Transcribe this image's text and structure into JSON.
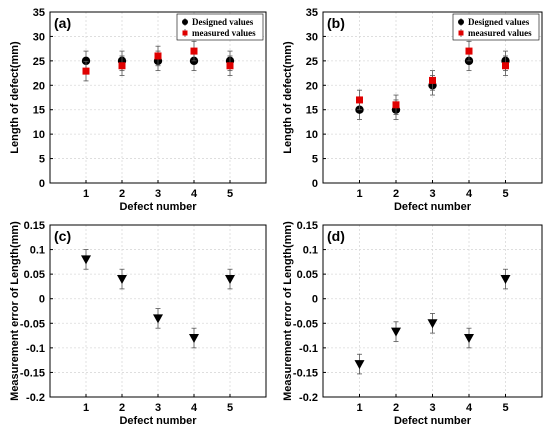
{
  "chart_data": [
    {
      "panel": "(a)",
      "type": "scatter",
      "xlabel": "Defect number",
      "ylabel": "Length of defect(mm)",
      "x": [
        1,
        2,
        3,
        4,
        5
      ],
      "xlim": [
        0,
        6
      ],
      "ylim": [
        0,
        35
      ],
      "xticks": [
        1,
        2,
        3,
        4,
        5
      ],
      "yticks": [
        0,
        5,
        10,
        15,
        20,
        25,
        30,
        35
      ],
      "grid": true,
      "legend": "top-right",
      "series": [
        {
          "name": "Designed values",
          "marker": "circle",
          "color": "#000000",
          "values": [
            25,
            25,
            25,
            25,
            25
          ],
          "err": [
            2,
            2,
            2,
            2,
            2
          ]
        },
        {
          "name": "measured values",
          "marker": "square",
          "color": "#e00000",
          "values": [
            22.9,
            24,
            26,
            27,
            24
          ],
          "err": [
            2,
            2,
            2,
            2,
            2
          ]
        }
      ]
    },
    {
      "panel": "(b)",
      "type": "scatter",
      "xlabel": "Defect number",
      "ylabel": "Length of defect(mm)",
      "x": [
        1,
        2,
        3,
        4,
        5
      ],
      "xlim": [
        0,
        6
      ],
      "ylim": [
        0,
        35
      ],
      "xticks": [
        1,
        2,
        3,
        4,
        5
      ],
      "yticks": [
        0,
        5,
        10,
        15,
        20,
        25,
        30,
        35
      ],
      "grid": true,
      "legend": "top-right",
      "series": [
        {
          "name": "Designed values",
          "marker": "circle",
          "color": "#000000",
          "values": [
            15,
            15,
            20,
            25,
            25
          ],
          "err": [
            2,
            2,
            2,
            2,
            2
          ]
        },
        {
          "name": "measured values",
          "marker": "square",
          "color": "#e00000",
          "values": [
            17,
            16,
            21,
            27,
            24
          ],
          "err": [
            2,
            2,
            2,
            2,
            2
          ]
        }
      ]
    },
    {
      "panel": "(c)",
      "type": "scatter",
      "xlabel": "Defect number",
      "ylabel": "Measurement error of Length(mm)",
      "x": [
        1,
        2,
        3,
        4,
        5
      ],
      "xlim": [
        0,
        6
      ],
      "ylim": [
        -0.2,
        0.15
      ],
      "xticks": [
        1,
        2,
        3,
        4,
        5
      ],
      "yticks": [
        -0.2,
        -0.15,
        -0.1,
        -0.05,
        0,
        0.05,
        0.1,
        0.15
      ],
      "grid": true,
      "series": [
        {
          "marker": "triangle-down",
          "color": "#000000",
          "values": [
            0.08,
            0.04,
            -0.04,
            -0.08,
            0.04
          ],
          "err": [
            0.02,
            0.02,
            0.02,
            0.02,
            0.02
          ]
        }
      ]
    },
    {
      "panel": "(d)",
      "type": "scatter",
      "xlabel": "Defect number",
      "ylabel": "Measurement error of Length(mm)",
      "x": [
        1,
        2,
        3,
        4,
        5
      ],
      "xlim": [
        0,
        6
      ],
      "ylim": [
        -0.2,
        0.15
      ],
      "xticks": [
        1,
        2,
        3,
        4,
        5
      ],
      "yticks": [
        -0.2,
        -0.15,
        -0.1,
        -0.05,
        0,
        0.05,
        0.1,
        0.15
      ],
      "grid": true,
      "series": [
        {
          "marker": "triangle-down",
          "color": "#000000",
          "values": [
            -0.133,
            -0.067,
            -0.05,
            -0.08,
            0.04
          ],
          "err": [
            0.02,
            0.02,
            0.02,
            0.02,
            0.02
          ]
        }
      ]
    }
  ]
}
